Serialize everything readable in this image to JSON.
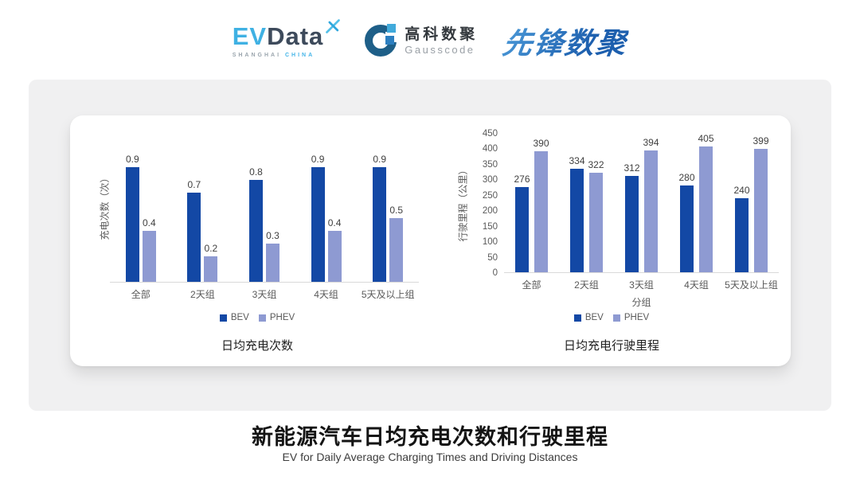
{
  "header": {
    "evdata": {
      "ev": "EV",
      "data": "Data",
      "sub_left": "SHANGHAI",
      "sub_right": "CHINA"
    },
    "gausscode": {
      "cn": "高科数聚",
      "en": "Gausscode"
    },
    "xianfeng": {
      "text": "先锋数聚"
    }
  },
  "colors": {
    "bev": "#1348A5",
    "phev": "#8E9AD2",
    "axis_text": "#595959",
    "value_label": "#3F3F3F",
    "card_bg": "#F0F0F1",
    "logo_light_blue": "#3FB1E3",
    "logo_dark_slate": "#3D4A5B",
    "xianfeng_blue": "#2C7CC9"
  },
  "chart_data": [
    {
      "type": "bar",
      "title": "日均充电次数",
      "ylabel": "充电次数（次）",
      "xlabel": "",
      "categories": [
        "全部",
        "2天组",
        "3天组",
        "4天组",
        "5天及以上组"
      ],
      "series": [
        {
          "name": "BEV",
          "color": "#1348A5",
          "values": [
            0.9,
            0.7,
            0.8,
            0.9,
            0.9
          ]
        },
        {
          "name": "PHEV",
          "color": "#8E9AD2",
          "values": [
            0.4,
            0.2,
            0.3,
            0.4,
            0.5
          ]
        }
      ],
      "ylim": [
        0,
        1.2
      ],
      "yticks": [],
      "grid": false,
      "legend_position": "bottom",
      "value_labels": true
    },
    {
      "type": "bar",
      "title": "日均充电行驶里程",
      "ylabel": "行驶里程（公里）",
      "xlabel": "分组",
      "categories": [
        "全部",
        "2天组",
        "3天组",
        "4天组",
        "5天及以上组"
      ],
      "series": [
        {
          "name": "BEV",
          "color": "#1348A5",
          "values": [
            276,
            334,
            312,
            280,
            240
          ]
        },
        {
          "name": "PHEV",
          "color": "#8E9AD2",
          "values": [
            390,
            322,
            394,
            405,
            399
          ]
        }
      ],
      "ylim": [
        0,
        450
      ],
      "yticks": [
        0,
        50,
        100,
        150,
        200,
        250,
        300,
        350,
        400,
        450
      ],
      "grid": false,
      "legend_position": "bottom",
      "value_labels": true
    }
  ],
  "footer": {
    "title": "新能源汽车日均充电次数和行驶里程",
    "subtitle": "EV for Daily Average Charging Times and Driving Distances"
  }
}
